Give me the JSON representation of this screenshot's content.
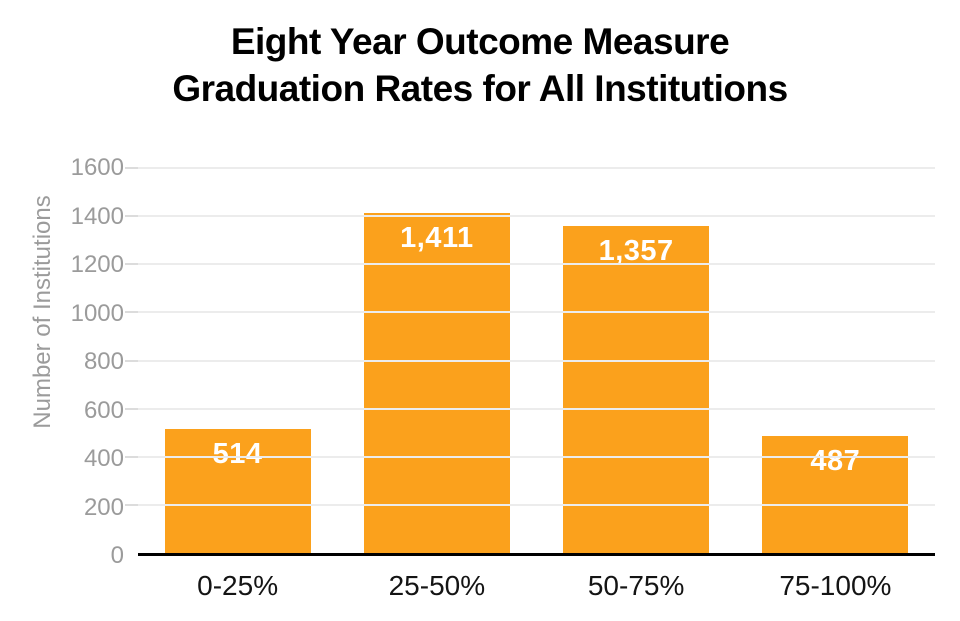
{
  "title_lines": [
    "Eight Year Outcome Measure",
    "Graduation Rates for All Institutions"
  ],
  "chart_data": {
    "type": "bar",
    "title": "Eight Year Outcome Measure Graduation Rates for All Institutions",
    "categories": [
      "0-25%",
      "25-50%",
      "50-75%",
      "75-100%"
    ],
    "values": [
      514,
      1411,
      1357,
      487
    ],
    "value_labels": [
      "514",
      "1,411",
      "1,357",
      "487"
    ],
    "xlabel": "",
    "ylabel": "Number of Institutions",
    "ylim": [
      0,
      1600
    ],
    "ytick_step": 200,
    "ytick_labels": [
      "0",
      "200",
      "400",
      "600",
      "800",
      "1000",
      "1200",
      "1400",
      "1600"
    ],
    "grid": "horizontal",
    "legend": "none",
    "colors": {
      "bar": "#FBA11C",
      "value_label": "#FFFFFF",
      "gridline": "#ECECEC",
      "tick": "#DCDCDC",
      "axis_line": "#000000",
      "y_tick_label": "#9B9B9B",
      "y_axis_title": "#9B9B9B",
      "x_tick_label": "#141414",
      "title": "#000000",
      "background": "#FFFFFF"
    }
  }
}
